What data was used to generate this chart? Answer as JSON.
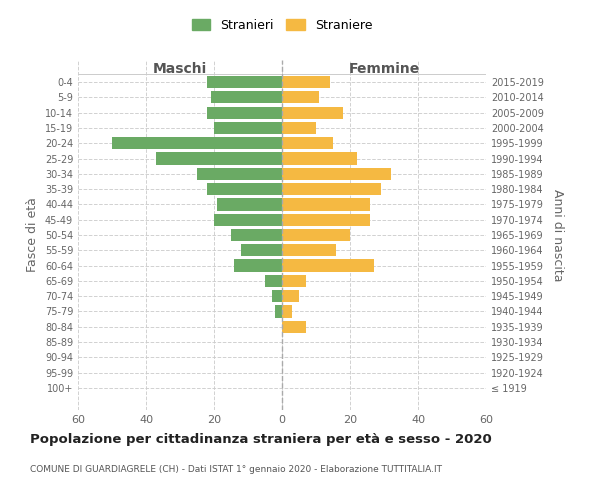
{
  "age_groups": [
    "100+",
    "95-99",
    "90-94",
    "85-89",
    "80-84",
    "75-79",
    "70-74",
    "65-69",
    "60-64",
    "55-59",
    "50-54",
    "45-49",
    "40-44",
    "35-39",
    "30-34",
    "25-29",
    "20-24",
    "15-19",
    "10-14",
    "5-9",
    "0-4"
  ],
  "birth_years": [
    "≤ 1919",
    "1920-1924",
    "1925-1929",
    "1930-1934",
    "1935-1939",
    "1940-1944",
    "1945-1949",
    "1950-1954",
    "1955-1959",
    "1960-1964",
    "1965-1969",
    "1970-1974",
    "1975-1979",
    "1980-1984",
    "1985-1989",
    "1990-1994",
    "1995-1999",
    "2000-2004",
    "2005-2009",
    "2010-2014",
    "2015-2019"
  ],
  "maschi": [
    0,
    0,
    0,
    0,
    0,
    2,
    3,
    5,
    14,
    12,
    15,
    20,
    19,
    22,
    25,
    37,
    50,
    20,
    22,
    21,
    22
  ],
  "femmine": [
    0,
    0,
    0,
    0,
    7,
    3,
    5,
    7,
    27,
    16,
    20,
    26,
    26,
    29,
    32,
    22,
    15,
    10,
    18,
    11,
    14
  ],
  "maschi_color": "#6aaa64",
  "femmine_color": "#f5b942",
  "background_color": "#ffffff",
  "grid_color": "#cccccc",
  "title": "Popolazione per cittadinanza straniera per età e sesso - 2020",
  "subtitle": "COMUNE DI GUARDIAGRELE (CH) - Dati ISTAT 1° gennaio 2020 - Elaborazione TUTTITALIA.IT",
  "ylabel": "Fasce di età",
  "ylabel_right": "Anni di nascita",
  "maschi_label": "Stranieri",
  "femmine_label": "Straniere",
  "xlim": 60,
  "xticks": [
    -60,
    -40,
    -20,
    0,
    20,
    40,
    60
  ],
  "xticklabels": [
    "60",
    "40",
    "20",
    "0",
    "20",
    "40",
    "60"
  ]
}
